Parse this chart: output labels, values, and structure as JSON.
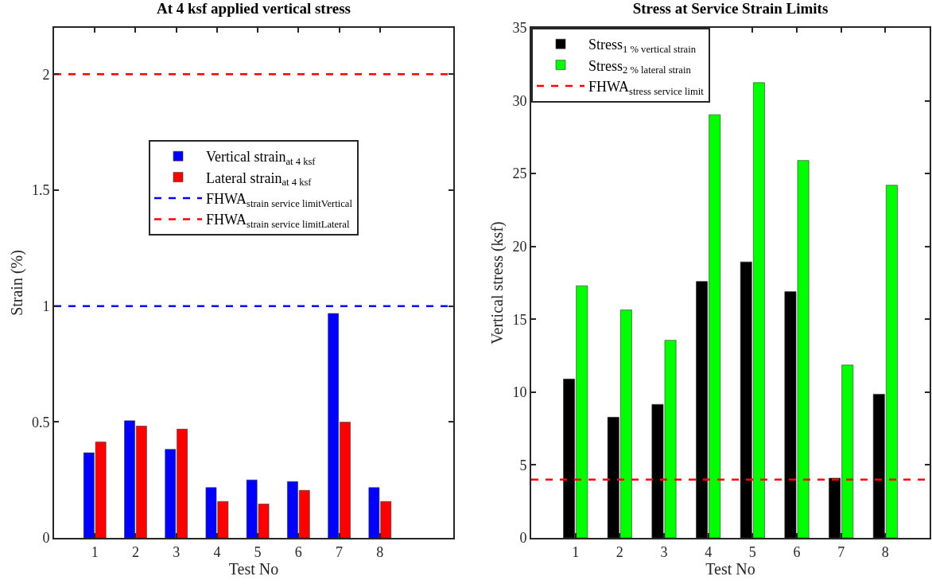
{
  "chart_data": [
    {
      "type": "bar",
      "title": "At 4 ksf applied vertical stress",
      "xlabel": "Test No",
      "ylabel": "Strain (%)",
      "x": [
        1,
        2,
        3,
        4,
        5,
        6,
        7,
        8
      ],
      "xlim": [
        0,
        9.8
      ],
      "xticks": [
        1,
        2,
        3,
        4,
        5,
        6,
        7,
        8
      ],
      "ylim": [
        0,
        2.2
      ],
      "yticks": [
        0,
        0.5,
        1,
        1.5,
        2
      ],
      "grid": false,
      "legend": "top",
      "series": [
        {
          "name": "Vertical strain$_{at 4 ksf}$",
          "color": "#0000ff",
          "values": [
            0.367,
            0.505,
            0.382,
            0.217,
            0.25,
            0.243,
            0.968,
            0.217
          ]
        },
        {
          "name": "Lateral strain$_{at 4 ksf}$",
          "color": "#ff0000",
          "values": [
            0.414,
            0.482,
            0.469,
            0.157,
            0.146,
            0.205,
            0.499,
            0.157
          ]
        }
      ],
      "ref_lines": [
        {
          "axis": "y",
          "value": 1,
          "label": "FHWA$_{strain service limit}$$_{Vertical}$",
          "color": "#0000ff",
          "line_style": "dashed"
        },
        {
          "axis": "y",
          "value": 2,
          "label": "FHWA$_{strain service limit}$$_{Lateral}$",
          "color": "#ff0000",
          "line_style": "dashed"
        }
      ]
    },
    {
      "type": "bar",
      "title": "Stress at Service Strain Limits",
      "xlabel": "Test No",
      "ylabel": "Vertical stress (ksf)",
      "x": [
        1,
        2,
        3,
        4,
        5,
        6,
        7,
        8
      ],
      "xlim": [
        0,
        9
      ],
      "xticks": [
        1,
        2,
        3,
        4,
        5,
        6,
        7,
        8
      ],
      "ylim": [
        0,
        35
      ],
      "yticks": [
        0,
        5,
        10,
        15,
        20,
        25,
        30,
        35
      ],
      "grid": false,
      "legend": "top left",
      "series": [
        {
          "name": "Stress$_{1 % vertical strain}$",
          "color": "#000000",
          "values": [
            10.9,
            8.28,
            9.16,
            17.6,
            18.94,
            16.9,
            4.1,
            9.86
          ]
        },
        {
          "name": "Stress$_{2 % lateral strain}$",
          "color": "#00ff00",
          "values": [
            17.3,
            15.64,
            13.56,
            29.04,
            31.24,
            25.9,
            11.86,
            24.2
          ]
        }
      ],
      "ref_lines": [
        {
          "axis": "y",
          "value": 4,
          "label": "FHWA$_{stress service limit}$",
          "color": "#ff0000",
          "line_style": "dashed"
        }
      ]
    }
  ]
}
